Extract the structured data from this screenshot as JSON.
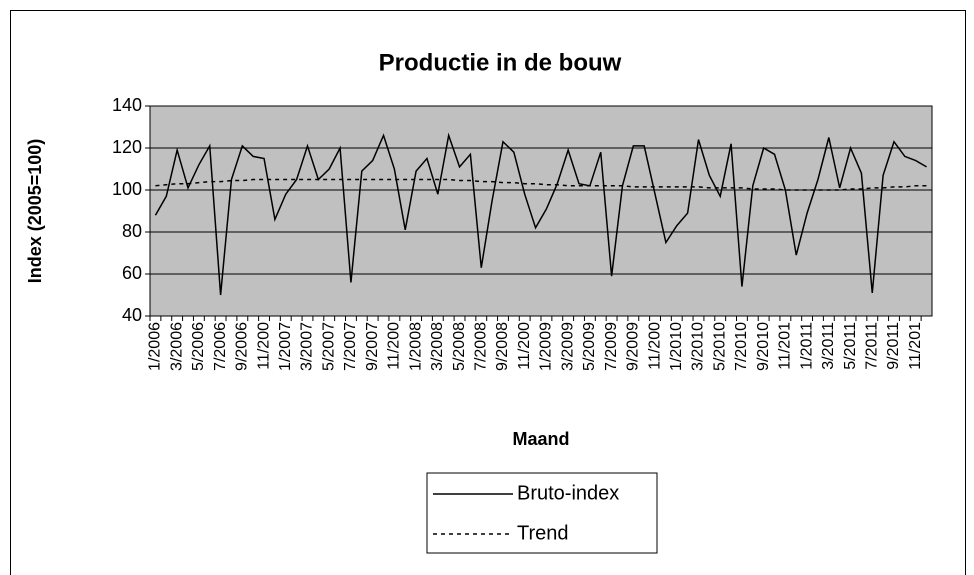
{
  "chart_data": {
    "type": "line",
    "title": "Productie in de bouw",
    "y_label": "Index (2005=100)",
    "x_label": "Maand",
    "legend": "bottom",
    "grid": true,
    "ylim": [
      40,
      140
    ],
    "yticks": [
      40,
      60,
      80,
      100,
      120,
      140
    ],
    "categories": [
      "1/2006",
      null,
      "3/2006",
      null,
      "5/2006",
      null,
      "7/2006",
      null,
      "9/2006",
      null,
      "11/200",
      null,
      "1/2007",
      null,
      "3/2007",
      null,
      "5/2007",
      null,
      "7/2007",
      null,
      "9/2007",
      null,
      "11/200",
      null,
      "1/2008",
      null,
      "3/2008",
      null,
      "5/2008",
      null,
      "7/2008",
      null,
      "9/2008",
      null,
      "11/200",
      null,
      "1/2009",
      null,
      "3/2009",
      null,
      "5/2009",
      null,
      "7/2009",
      null,
      "9/2009",
      null,
      "11/200",
      null,
      "1/2010",
      null,
      "3/2010",
      null,
      "5/2010",
      null,
      "7/2010",
      null,
      "9/2010",
      null,
      "11/201",
      null,
      "1/2011",
      null,
      "3/2011",
      null,
      "5/2011",
      null,
      "7/2011",
      null,
      "9/2011",
      null,
      "11/201",
      null
    ],
    "series": [
      {
        "name": "Bruto-index",
        "color": "#000000",
        "dash": "solid",
        "values": [
          88,
          97,
          119,
          101,
          112,
          121,
          50,
          105,
          121,
          116,
          115,
          86,
          98,
          105,
          121,
          105,
          110,
          120,
          56,
          109,
          114,
          126,
          110,
          81,
          109,
          115,
          98,
          126,
          111,
          117,
          63,
          95,
          123,
          118,
          98,
          82,
          91,
          103,
          119,
          103,
          102,
          118,
          59,
          102,
          121,
          121,
          98,
          75,
          83,
          89,
          124,
          107,
          97,
          122,
          54,
          102,
          120,
          117,
          100,
          69,
          89,
          105,
          125,
          101,
          120,
          108,
          51,
          107,
          123,
          116,
          114,
          111
        ]
      },
      {
        "name": "Trend",
        "color": "#000000",
        "dash": "dashed",
        "values": [
          102,
          102.5,
          103,
          103,
          103.5,
          104,
          104,
          104.5,
          104.5,
          105,
          105,
          105,
          105,
          105,
          105,
          105,
          105,
          105,
          105,
          105,
          105,
          105,
          105,
          105,
          105,
          105,
          105,
          105,
          104.5,
          104.5,
          104,
          104,
          103.5,
          103.5,
          103,
          103,
          102.5,
          102.5,
          102,
          102,
          102,
          102,
          102,
          102,
          101.5,
          101.5,
          101.5,
          101.5,
          101.5,
          101.5,
          101.5,
          101,
          101,
          101,
          101,
          100.5,
          100.5,
          100.5,
          100,
          100,
          100,
          100,
          100,
          100,
          100.5,
          100.5,
          101,
          101,
          101.5,
          101.5,
          102,
          102
        ]
      }
    ]
  }
}
